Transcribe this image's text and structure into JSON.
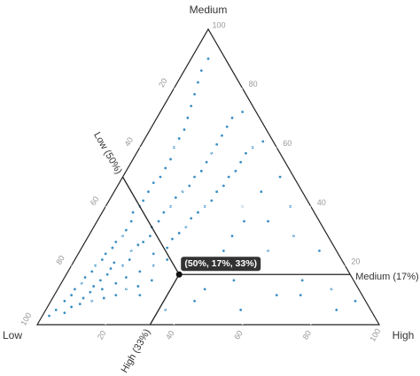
{
  "chart_data": {
    "type": "ternary",
    "axes": [
      {
        "name": "Low",
        "ticks": [
          20,
          40,
          60,
          80,
          100
        ]
      },
      {
        "name": "Medium",
        "ticks": [
          20,
          40,
          60,
          80,
          100
        ]
      },
      {
        "name": "High",
        "ticks": [
          20,
          40,
          60,
          80,
          100
        ]
      }
    ],
    "color": "#3b8fc4",
    "grid": true,
    "points": [
      [
        95,
        3,
        2
      ],
      [
        92,
        5,
        3
      ],
      [
        90,
        4,
        6
      ],
      [
        88,
        8,
        4
      ],
      [
        87,
        6,
        7
      ],
      [
        85,
        10,
        5
      ],
      [
        84,
        7,
        9
      ],
      [
        83,
        12,
        5
      ],
      [
        82,
        9,
        9
      ],
      [
        80,
        14,
        6
      ],
      [
        80,
        8,
        12
      ],
      [
        79,
        11,
        10
      ],
      [
        78,
        16,
        6
      ],
      [
        77,
        13,
        10
      ],
      [
        76,
        9,
        15
      ],
      [
        75,
        18,
        7
      ],
      [
        75,
        12,
        13
      ],
      [
        74,
        15,
        11
      ],
      [
        73,
        20,
        7
      ],
      [
        72,
        10,
        18
      ],
      [
        71,
        17,
        12
      ],
      [
        70,
        22,
        8
      ],
      [
        70,
        14,
        16
      ],
      [
        69,
        19,
        12
      ],
      [
        68,
        24,
        8
      ],
      [
        68,
        12,
        20
      ],
      [
        67,
        21,
        12
      ],
      [
        66,
        16,
        18
      ],
      [
        65,
        26,
        9
      ],
      [
        65,
        20,
        15
      ],
      [
        64,
        13,
        23
      ],
      [
        63,
        28,
        9
      ],
      [
        62,
        22,
        16
      ],
      [
        61,
        18,
        21
      ],
      [
        60,
        30,
        10
      ],
      [
        60,
        25,
        15
      ],
      [
        59,
        15,
        26
      ],
      [
        58,
        32,
        10
      ],
      [
        57,
        27,
        16
      ],
      [
        56,
        20,
        24
      ],
      [
        55,
        35,
        10
      ],
      [
        55,
        28,
        17
      ],
      [
        54,
        24,
        22
      ],
      [
        53,
        38,
        9
      ],
      [
        52,
        30,
        18
      ],
      [
        51,
        22,
        27
      ],
      [
        50,
        40,
        10
      ],
      [
        50,
        33,
        17
      ],
      [
        49,
        26,
        25
      ],
      [
        48,
        42,
        10
      ],
      [
        47,
        35,
        18
      ],
      [
        46,
        29,
        25
      ],
      [
        45,
        45,
        10
      ],
      [
        44,
        38,
        18
      ],
      [
        43,
        31,
        26
      ],
      [
        42,
        48,
        10
      ],
      [
        41,
        40,
        19
      ],
      [
        40,
        33,
        27
      ],
      [
        39,
        50,
        11
      ],
      [
        38,
        43,
        19
      ],
      [
        37,
        36,
        27
      ],
      [
        36,
        53,
        11
      ],
      [
        35,
        45,
        20
      ],
      [
        34,
        38,
        28
      ],
      [
        33,
        56,
        11
      ],
      [
        32,
        47,
        21
      ],
      [
        31,
        40,
        29
      ],
      [
        30,
        60,
        10
      ],
      [
        29,
        50,
        21
      ],
      [
        28,
        42,
        30
      ],
      [
        27,
        63,
        10
      ],
      [
        26,
        52,
        22
      ],
      [
        25,
        45,
        30
      ],
      [
        24,
        66,
        10
      ],
      [
        23,
        55,
        22
      ],
      [
        22,
        47,
        31
      ],
      [
        21,
        70,
        9
      ],
      [
        20,
        58,
        22
      ],
      [
        19,
        50,
        31
      ],
      [
        18,
        74,
        8
      ],
      [
        17,
        61,
        22
      ],
      [
        16,
        52,
        32
      ],
      [
        15,
        78,
        7
      ],
      [
        14,
        64,
        22
      ],
      [
        13,
        55,
        32
      ],
      [
        12,
        82,
        6
      ],
      [
        11,
        67,
        22
      ],
      [
        10,
        58,
        32
      ],
      [
        9,
        86,
        5
      ],
      [
        8,
        70,
        22
      ],
      [
        7,
        60,
        33
      ],
      [
        5,
        90,
        5
      ],
      [
        4,
        72,
        24
      ],
      [
        3,
        62,
        35
      ],
      [
        30,
        20,
        50
      ],
      [
        20,
        25,
        55
      ],
      [
        15,
        15,
        70
      ],
      [
        10,
        30,
        60
      ],
      [
        25,
        10,
        65
      ],
      [
        8,
        12,
        80
      ],
      [
        5,
        25,
        70
      ],
      [
        35,
        15,
        50
      ],
      [
        40,
        20,
        40
      ],
      [
        45,
        12,
        43
      ],
      [
        20,
        40,
        40
      ],
      [
        12,
        45,
        43
      ],
      [
        6,
        40,
        54
      ],
      [
        28,
        30,
        42
      ],
      [
        18,
        10,
        72
      ],
      [
        3,
        8,
        89
      ],
      [
        10,
        5,
        85
      ],
      [
        38,
        5,
        57
      ],
      [
        50,
        8,
        42
      ],
      [
        60,
        5,
        35
      ],
      [
        65,
        10,
        25
      ],
      [
        22,
        35,
        43
      ],
      [
        15,
        35,
        50
      ],
      [
        4,
        50,
        46
      ],
      [
        33,
        25,
        42
      ]
    ],
    "hover": {
      "values": [
        50,
        17,
        33
      ],
      "label": "(50%, 17%, 33%)",
      "axis_labels": [
        "Low (50%)",
        "Medium (17%)",
        "High (33%)"
      ]
    }
  }
}
